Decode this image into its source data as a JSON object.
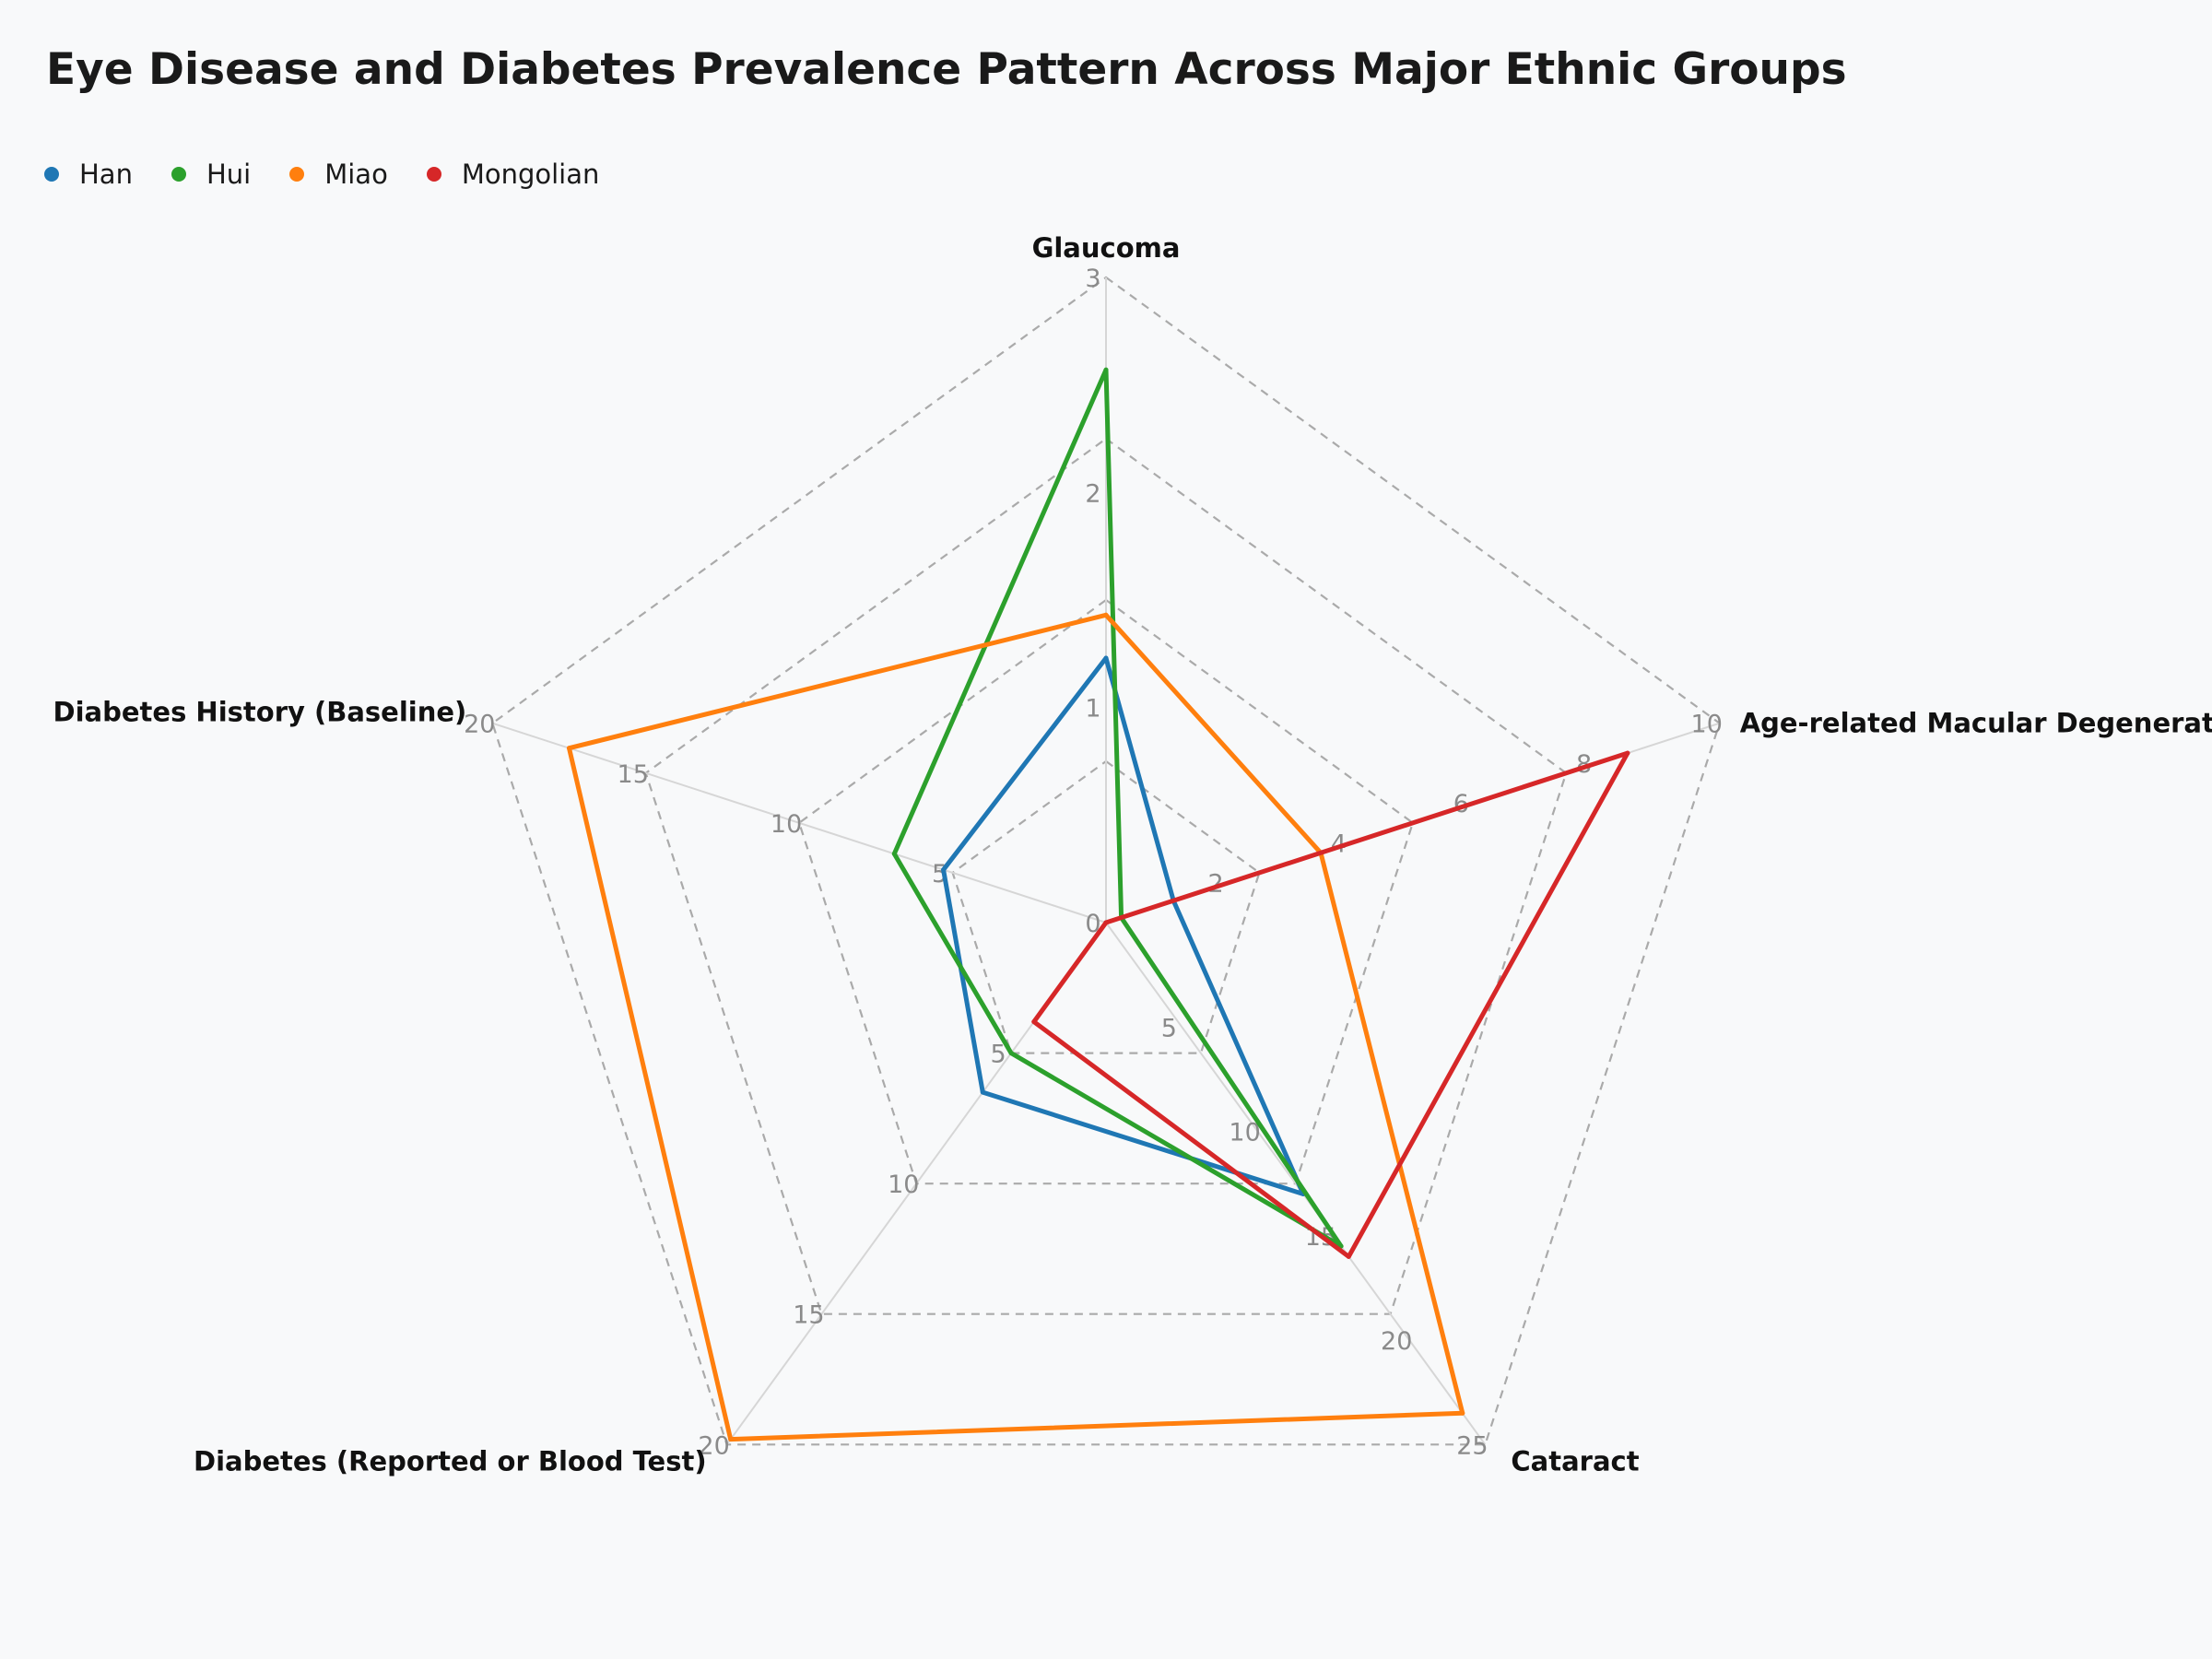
{
  "chart_data": {
    "type": "radar",
    "title": "Eye Disease and Diabetes Prevalence Pattern Across Major Ethnic Groups",
    "axes": [
      {
        "label": "Glaucoma",
        "max": 3,
        "ticks": [
          "0",
          "1",
          "2",
          "3"
        ],
        "tick_values": [
          0,
          1,
          2,
          3
        ]
      },
      {
        "label": "Age-related Macular Degeneration",
        "max": 10,
        "ticks": [
          "2",
          "4",
          "6",
          "8",
          "10"
        ],
        "tick_values": [
          2,
          4,
          6,
          8,
          10
        ]
      },
      {
        "label": "Cataract",
        "max": 25,
        "ticks": [
          "5",
          "10",
          "15",
          "20",
          "25"
        ],
        "tick_values": [
          5,
          10,
          15,
          20,
          25
        ]
      },
      {
        "label": "Diabetes (Reported or Blood Test)",
        "max": 20,
        "ticks": [
          "5",
          "10",
          "15",
          "20"
        ],
        "tick_values": [
          5,
          10,
          15,
          20
        ]
      },
      {
        "label": "Diabetes History (Baseline)",
        "max": 20,
        "ticks": [
          "5",
          "10",
          "15",
          "20"
        ],
        "tick_values": [
          5,
          10,
          15,
          20
        ]
      }
    ],
    "grid_levels": [
      0.25,
      0.5,
      0.75,
      1.0
    ],
    "legend_position": "top-left",
    "series": [
      {
        "name": "Han",
        "color": "#1f77b4",
        "values": [
          1.23,
          1.1,
          13.0,
          6.5,
          5.3
        ]
      },
      {
        "name": "Hui",
        "color": "#2ca02c",
        "values": [
          2.57,
          0.25,
          15.5,
          5.0,
          6.9
        ]
      },
      {
        "name": "Miao",
        "color": "#ff7f0e",
        "values": [
          1.43,
          3.5,
          23.5,
          19.8,
          17.5
        ]
      },
      {
        "name": "Mongolian",
        "color": "#d62728",
        "values": [
          0.0,
          8.5,
          16.0,
          3.8,
          0.0
        ]
      }
    ]
  }
}
